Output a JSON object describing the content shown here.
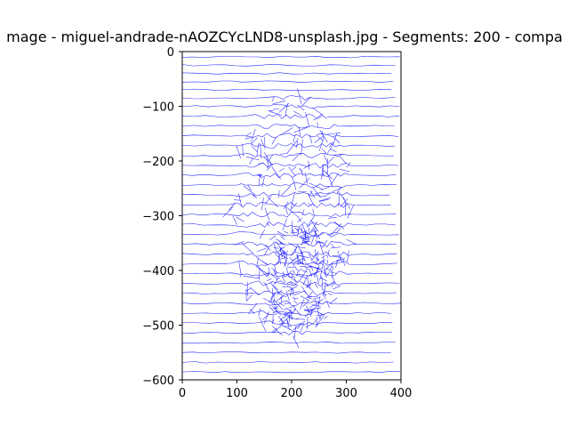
{
  "chart_data": {
    "type": "line",
    "title": "mage - miguel-andrade-nAOZCYcLND8-unsplash.jpg - Segments: 200 - compa",
    "xlabel": "",
    "ylabel": "",
    "xlim": [
      0,
      400
    ],
    "ylim": [
      -600,
      0
    ],
    "x_ticks": [
      0,
      100,
      200,
      300,
      400
    ],
    "y_ticks": [
      0,
      -100,
      -200,
      -300,
      -400,
      -500,
      -600
    ],
    "x_tick_labels": [
      "0",
      "100",
      "200",
      "300",
      "400"
    ],
    "y_tick_labels": [
      "0",
      "−100",
      "−200",
      "−300",
      "−400",
      "−500",
      "−600"
    ],
    "grid": false,
    "line_color": "#0000ff",
    "background_rows": [
      -10,
      -25,
      -40,
      -55,
      -70,
      -85,
      -100,
      -118,
      -136,
      -154,
      -172,
      -190,
      -208,
      -226,
      -244,
      -262,
      -280,
      -298,
      -316,
      -334,
      -352,
      -370,
      -388,
      -406,
      -424,
      -442,
      -460,
      -478,
      -496,
      -514,
      -532,
      -550,
      -568,
      -586
    ],
    "center_region": {
      "cx": 200,
      "cy": -300,
      "rx": 110,
      "ry": 230
    },
    "oval_region": {
      "cx": 215,
      "cy": -420,
      "rx": 65,
      "ry": 95
    }
  }
}
